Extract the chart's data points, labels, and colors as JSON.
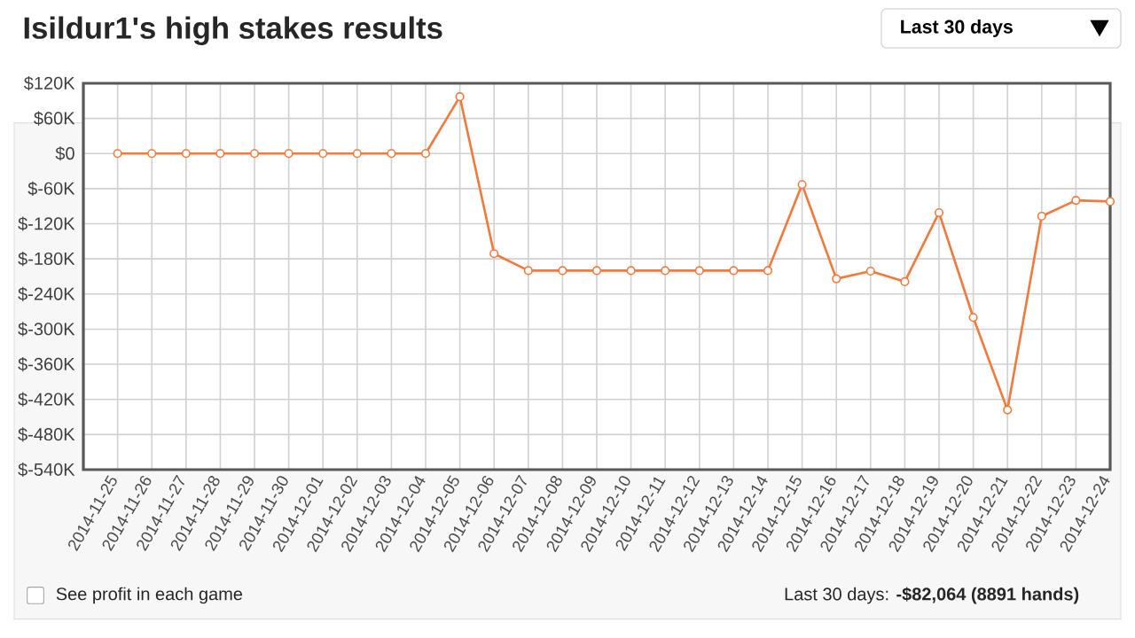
{
  "chart_data": {
    "type": "line",
    "title": "Isildur1's high stakes results",
    "categories": [
      "2014-11-25",
      "2014-11-26",
      "2014-11-27",
      "2014-11-28",
      "2014-11-29",
      "2014-11-30",
      "2014-12-01",
      "2014-12-02",
      "2014-12-03",
      "2014-12-04",
      "2014-12-05",
      "2014-12-06",
      "2014-12-07",
      "2014-12-08",
      "2014-12-09",
      "2014-12-10",
      "2014-12-11",
      "2014-12-12",
      "2014-12-13",
      "2014-12-14",
      "2014-12-15",
      "2014-12-16",
      "2014-12-17",
      "2014-12-18",
      "2014-12-19",
      "2014-12-20",
      "2014-12-21",
      "2014-12-22",
      "2014-12-23",
      "2014-12-24"
    ],
    "values": [
      0,
      0,
      0,
      0,
      0,
      0,
      0,
      0,
      0,
      0,
      97,
      -171,
      -200,
      -200,
      -200,
      -200,
      -200,
      -200,
      -200,
      -200,
      -53,
      -214,
      -201,
      -219,
      -101,
      -280,
      -438,
      -107,
      -80,
      -82
    ],
    "color": "#f07b3f",
    "ylim": [
      -540,
      120
    ],
    "yticks": [
      {
        "value": 120,
        "label": "$120K"
      },
      {
        "value": 60,
        "label": "$60K"
      },
      {
        "value": 0,
        "label": "$0"
      },
      {
        "value": -60,
        "label": "$-60K"
      },
      {
        "value": -120,
        "label": "$-120K"
      },
      {
        "value": -180,
        "label": "$-180K"
      },
      {
        "value": -240,
        "label": "$-240K"
      },
      {
        "value": -300,
        "label": "$-300K"
      },
      {
        "value": -360,
        "label": "$-360K"
      },
      {
        "value": -420,
        "label": "$-420K"
      },
      {
        "value": -480,
        "label": "$-480K"
      },
      {
        "value": -540,
        "label": "$-540K"
      }
    ],
    "grid": true,
    "marker": "circle",
    "line_style": "solid",
    "annotations": [
      "Last 30 days",
      "See profit in each game",
      "Last 30 days: **-$82,064 (8891 hands)**"
    ]
  }
}
